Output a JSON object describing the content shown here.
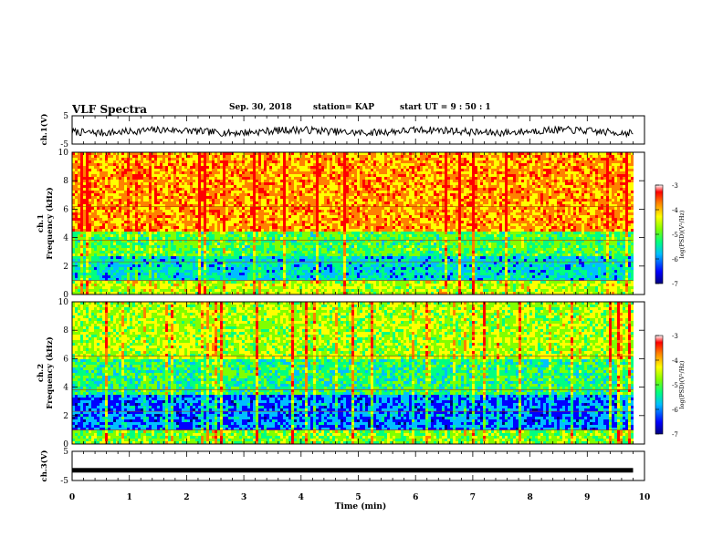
{
  "header": {
    "title": "VLF Spectra",
    "date": "Sep. 30, 2018",
    "station": "station= KAP",
    "start_time": "start  UT =   9  : 50 : 1"
  },
  "colors": {
    "colormap": [
      "#000080",
      "#0000ff",
      "#00bfff",
      "#00ff80",
      "#80ff00",
      "#ffff00",
      "#ff8000",
      "#ff0000",
      "#ffffff"
    ],
    "trace": "#000000"
  },
  "chart_data": [
    {
      "type": "line",
      "panel": "ch1-waveform",
      "ylabel": "ch.1(V)",
      "ylim": [
        -5,
        5
      ],
      "ytick_labels": [
        "5",
        "-5"
      ],
      "x_range_min": [
        0,
        9.8
      ],
      "series": [
        {
          "values_summary": "noisy waveform around -0.5 V, amplitude ~1.5 V"
        }
      ]
    },
    {
      "type": "heatmap",
      "panel": "ch1-spectrogram",
      "ylabel": "ch.1\nFrequency  (kHz)",
      "ylim": [
        0,
        10
      ],
      "ytick_labels": [
        "0",
        "2",
        "4",
        "6",
        "8",
        "10"
      ],
      "colorbar": {
        "label": "log(PSD)(V²/Hz)",
        "range": [
          -7,
          -3
        ],
        "tick_labels": [
          "-3",
          "-4",
          "-5",
          "-6",
          "-7"
        ]
      }
    },
    {
      "type": "heatmap",
      "panel": "ch2-spectrogram",
      "ylabel": "ch.2\nFrequency  (kHz)",
      "ylim": [
        0,
        10
      ],
      "ytick_labels": [
        "0",
        "2",
        "4",
        "6",
        "8",
        "10"
      ],
      "colorbar": {
        "label": "log(PSD)(V²/Hz)",
        "range": [
          -7,
          -3
        ],
        "tick_labels": [
          "-3",
          "-4",
          "-5",
          "-6",
          "-7"
        ]
      }
    },
    {
      "type": "line",
      "panel": "ch3-waveform",
      "ylabel": "ch.3(V)",
      "ylim": [
        -5,
        5
      ],
      "ytick_labels": [
        "5",
        "-5"
      ],
      "series": [
        {
          "values_summary": "flat line at about -1.5 V"
        }
      ]
    }
  ],
  "xaxis": {
    "label": "Time  (min)",
    "range": [
      0,
      10
    ],
    "tick_labels": [
      "0",
      "1",
      "2",
      "3",
      "4",
      "5",
      "6",
      "7",
      "8",
      "9",
      "10"
    ]
  }
}
